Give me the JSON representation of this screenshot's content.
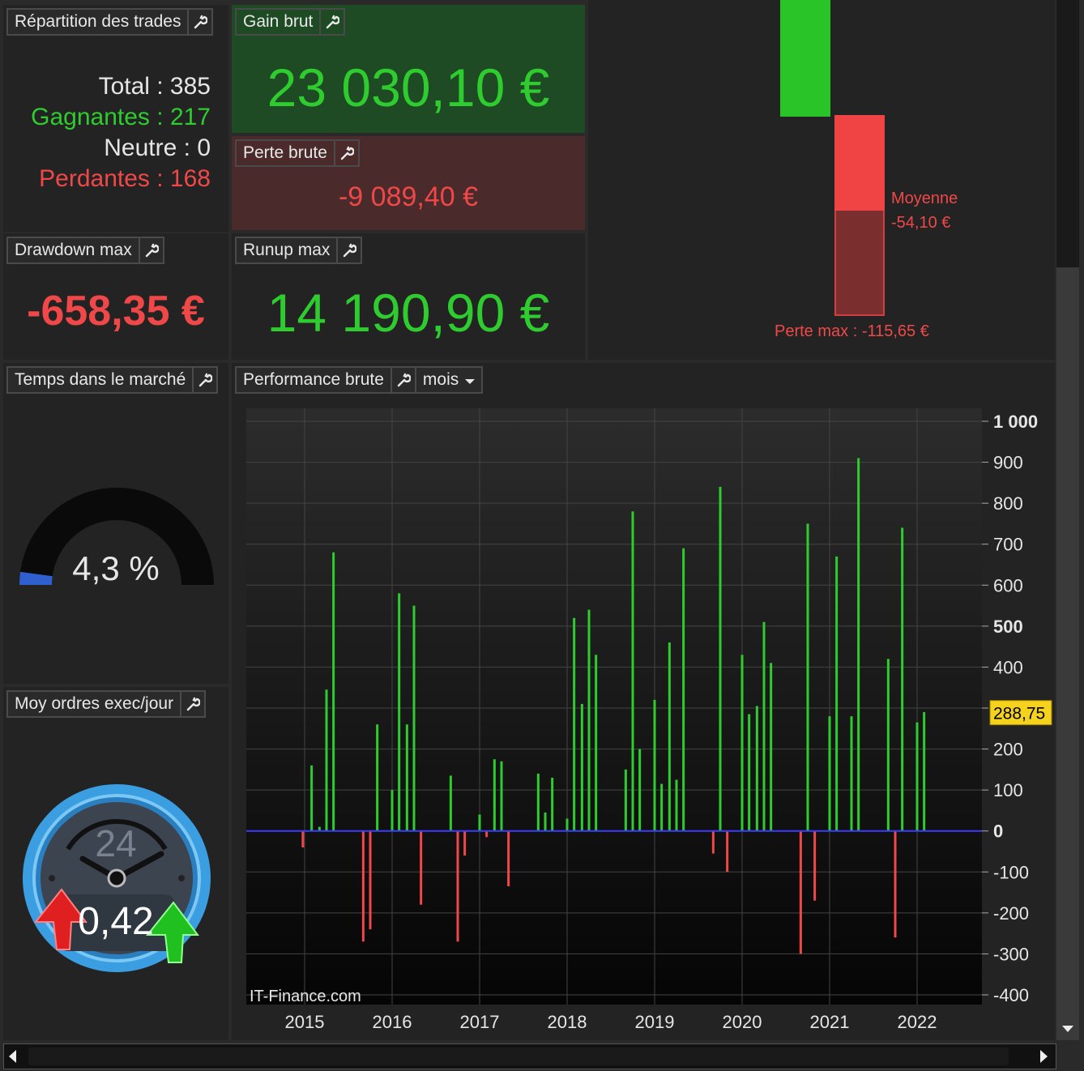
{
  "repartition": {
    "title": "Répartition des trades",
    "total": "Total : 385",
    "gagnantes": "Gagnantes : 217",
    "neutre": "Neutre : 0",
    "perdantes": "Perdantes : 168"
  },
  "gain_brut": {
    "title": "Gain brut",
    "value": "23 030,10 €"
  },
  "perte_brute": {
    "title": "Perte brute",
    "value": "-9 089,40 €"
  },
  "drawdown": {
    "title": "Drawdown max",
    "value": "-658,35 €"
  },
  "runup": {
    "title": "Runup max",
    "value": "14 190,90 €"
  },
  "avg_bars": {
    "moyenne_label": "Moyenne",
    "moyenne_value": "-54,10 €",
    "perte_max": "Perte max : -115,65 €"
  },
  "temps": {
    "title": "Temps dans le marché",
    "value": "4,3 %",
    "fraction": 0.043
  },
  "ordres": {
    "title": "Moy ordres exec/jour",
    "dial_number": "24",
    "value": "0,42"
  },
  "performance": {
    "title": "Performance brute",
    "period": "mois",
    "watermark": "IT-Finance.com"
  },
  "colors": {
    "gain": "#2fcc2f",
    "loss": "#f04848",
    "zero_line": "#3b3bff",
    "marker": "#f5d21c"
  },
  "chart_data": {
    "type": "bar",
    "x_ticks": [
      "2015",
      "2016",
      "2017",
      "2018",
      "2019",
      "2020",
      "2021",
      "2022"
    ],
    "y_ticks": [
      "1 000",
      "900",
      "800",
      "700",
      "600",
      "500",
      "400",
      "300",
      "200",
      "100",
      "0",
      "-100",
      "-200",
      "-300",
      "-400"
    ],
    "y_tick_values": [
      1000,
      900,
      800,
      700,
      600,
      500,
      400,
      300,
      200,
      100,
      0,
      -100,
      -200,
      -300,
      -400
    ],
    "ylim": [
      -400,
      1000
    ],
    "bold_ticks": [
      "1 000",
      "500",
      "0"
    ],
    "marker": {
      "value": 288.75,
      "label": "288,75"
    },
    "grid": true,
    "bars": [
      {
        "x": 2014.98,
        "y": -40
      },
      {
        "x": 2015.08,
        "y": 160
      },
      {
        "x": 2015.17,
        "y": 10
      },
      {
        "x": 2015.25,
        "y": 345
      },
      {
        "x": 2015.33,
        "y": 680
      },
      {
        "x": 2015.67,
        "y": -270
      },
      {
        "x": 2015.75,
        "y": -240
      },
      {
        "x": 2015.83,
        "y": 260
      },
      {
        "x": 2016.0,
        "y": 100
      },
      {
        "x": 2016.08,
        "y": 580
      },
      {
        "x": 2016.17,
        "y": 260
      },
      {
        "x": 2016.25,
        "y": 550
      },
      {
        "x": 2016.33,
        "y": -180
      },
      {
        "x": 2016.67,
        "y": 135
      },
      {
        "x": 2016.75,
        "y": -270
      },
      {
        "x": 2016.83,
        "y": -60
      },
      {
        "x": 2017.0,
        "y": 40
      },
      {
        "x": 2017.08,
        "y": -15
      },
      {
        "x": 2017.17,
        "y": 175
      },
      {
        "x": 2017.25,
        "y": 170
      },
      {
        "x": 2017.33,
        "y": -135
      },
      {
        "x": 2017.67,
        "y": 140
      },
      {
        "x": 2017.75,
        "y": 45
      },
      {
        "x": 2017.83,
        "y": 130
      },
      {
        "x": 2018.0,
        "y": 30
      },
      {
        "x": 2018.08,
        "y": 520
      },
      {
        "x": 2018.17,
        "y": 310
      },
      {
        "x": 2018.25,
        "y": 540
      },
      {
        "x": 2018.33,
        "y": 430
      },
      {
        "x": 2018.67,
        "y": 150
      },
      {
        "x": 2018.75,
        "y": 780
      },
      {
        "x": 2018.83,
        "y": 200
      },
      {
        "x": 2019.0,
        "y": 320
      },
      {
        "x": 2019.08,
        "y": 115
      },
      {
        "x": 2019.17,
        "y": 460
      },
      {
        "x": 2019.25,
        "y": 125
      },
      {
        "x": 2019.33,
        "y": 690
      },
      {
        "x": 2019.67,
        "y": -55
      },
      {
        "x": 2019.75,
        "y": 840
      },
      {
        "x": 2019.83,
        "y": -100
      },
      {
        "x": 2020.0,
        "y": 430
      },
      {
        "x": 2020.08,
        "y": 285
      },
      {
        "x": 2020.17,
        "y": 305
      },
      {
        "x": 2020.25,
        "y": 510
      },
      {
        "x": 2020.33,
        "y": 410
      },
      {
        "x": 2020.67,
        "y": -300
      },
      {
        "x": 2020.75,
        "y": 750
      },
      {
        "x": 2020.83,
        "y": -170
      },
      {
        "x": 2021.0,
        "y": 280
      },
      {
        "x": 2021.08,
        "y": 670
      },
      {
        "x": 2021.25,
        "y": 280
      },
      {
        "x": 2021.33,
        "y": 910
      },
      {
        "x": 2021.67,
        "y": 420
      },
      {
        "x": 2021.75,
        "y": -260
      },
      {
        "x": 2021.83,
        "y": 740
      },
      {
        "x": 2022.0,
        "y": 265
      },
      {
        "x": 2022.08,
        "y": 290
      }
    ]
  }
}
